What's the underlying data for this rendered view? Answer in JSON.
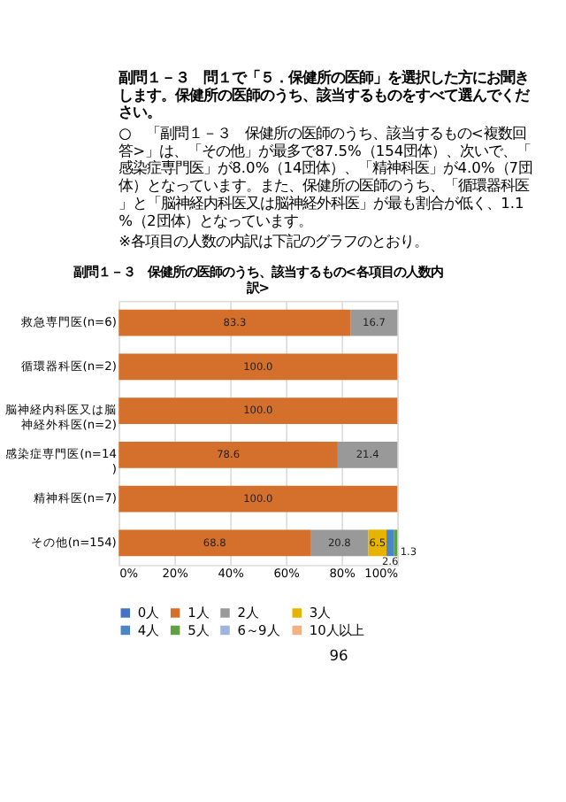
{
  "chart_data": {
    "type": "bar",
    "orientation": "horizontal",
    "stacked": true,
    "title": "副問１－３　保健所の医師のうち、該当するもの<各項目の人数内訳>",
    "annotations": [
      "副問１－３　問１で「５．保健所の医師」を選択した方にお聞きします。保健所の医師のうち、該当するものをすべて選んでください。",
      "○　「副問１－３　保健所の医師のうち、該当するもの<複数回答>」は、「その他」が最多で87.5%（154団体）、次いで、「感染症専門医」が8.0%（14団体）、「精神科医」が4.0%（7団体）となっています。また、保健所の医師のうち、「循環器科医」と「脳神経内科医又は脳神経外科医」が最も割合が低く、1.1%（2団体）となっています。",
      "※各項目の人数の内訳は下記のグラフのとおり。",
      "96"
    ],
    "categories": [
      "救急専門医(n=6)",
      "循環器科医(n=2)",
      "脳神経内科医又は脳神経外科医(n=2)",
      "感染症専門医(n=14)",
      "精神科医(n=7)",
      "その他(n=154)"
    ],
    "series": [
      {
        "name": "0人",
        "color": "#4472c4",
        "values": [
          null,
          null,
          null,
          null,
          null,
          null
        ],
        "value_labels": [
          null,
          null,
          null,
          null,
          null,
          null
        ]
      },
      {
        "name": "1人",
        "color": "#d4702c",
        "values": [
          83.3,
          100,
          100,
          78.6,
          100,
          68.8
        ],
        "value_labels": [
          "83.3",
          "100.0",
          "100.0",
          "78.6",
          "100.0",
          "68.8"
        ]
      },
      {
        "name": "2人",
        "color": "#999999",
        "values": [
          16.7,
          null,
          null,
          21.4,
          null,
          20.8
        ],
        "value_labels": [
          "16.7",
          null,
          null,
          "21.4",
          null,
          "20.8"
        ]
      },
      {
        "name": "3人",
        "color": "#e6b400",
        "values": [
          null,
          null,
          null,
          null,
          null,
          6.5
        ],
        "value_labels": [
          null,
          null,
          null,
          null,
          null,
          "6.5"
        ]
      },
      {
        "name": "4人",
        "color": "#4a86c5",
        "values": [
          null,
          null,
          null,
          null,
          null,
          2.6
        ],
        "value_labels": [
          null,
          null,
          null,
          null,
          null,
          "2.6"
        ]
      },
      {
        "name": "5人",
        "color": "#5fa044",
        "values": [
          null,
          null,
          null,
          null,
          null,
          1.3
        ],
        "value_labels": [
          null,
          null,
          null,
          null,
          null,
          "1.3"
        ]
      },
      {
        "name": "6～9人",
        "color": "#9fb3e0",
        "values": [
          null,
          null,
          null,
          null,
          null,
          null
        ],
        "value_labels": [
          null,
          null,
          null,
          null,
          null,
          null
        ]
      },
      {
        "name": "10人以上",
        "color": "#f4b183",
        "values": [
          null,
          null,
          null,
          null,
          null,
          null
        ],
        "value_labels": [
          null,
          null,
          null,
          null,
          null,
          null
        ]
      }
    ],
    "xlim": [
      0,
      100
    ],
    "xticks": [
      {
        "value": 0,
        "label": "0%"
      },
      {
        "value": 20,
        "label": "20%"
      },
      {
        "value": 40,
        "label": "40%"
      },
      {
        "value": 60,
        "label": "60%"
      },
      {
        "value": 80,
        "label": "80%"
      },
      {
        "value": 100,
        "label": "100%"
      }
    ],
    "grid": "x",
    "legend": "bottom"
  }
}
